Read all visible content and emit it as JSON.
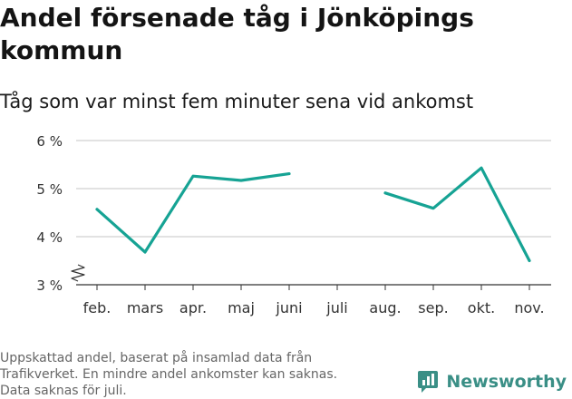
{
  "colors": {
    "line": "#16a394",
    "grid": "#d9d9d9",
    "brand": "#3a8f86"
  },
  "chart_data": {
    "type": "line",
    "title": "Andel försenade tåg i Jönköpings kommun",
    "subtitle": "Tåg som var minst fem minuter sena vid ankomst",
    "xlabel": "",
    "ylabel": "",
    "categories": [
      "feb.",
      "mars",
      "apr.",
      "maj",
      "juni",
      "juli",
      "aug.",
      "sep.",
      "okt.",
      "nov."
    ],
    "series": [
      {
        "values": [
          4.57,
          3.68,
          5.26,
          5.17,
          5.31,
          null,
          4.91,
          4.59,
          5.43,
          3.5
        ]
      }
    ],
    "y_ticks": [
      {
        "value": 3,
        "label": "3 %"
      },
      {
        "value": 4,
        "label": "4 %"
      },
      {
        "value": 5,
        "label": "5 %"
      },
      {
        "value": 6,
        "label": "6 %"
      }
    ],
    "ylim": [
      3,
      6
    ],
    "axis_break": true,
    "grid": true,
    "legend": "none"
  },
  "footnote": {
    "lines": [
      "Uppskattad andel, baserat på insamlad data från",
      "Trafikverket. En mindre andel ankomster kan saknas.",
      "Data saknas för juli."
    ]
  },
  "brand": {
    "name": "Newsworthy",
    "icon": "newsworthy-logo-icon"
  }
}
